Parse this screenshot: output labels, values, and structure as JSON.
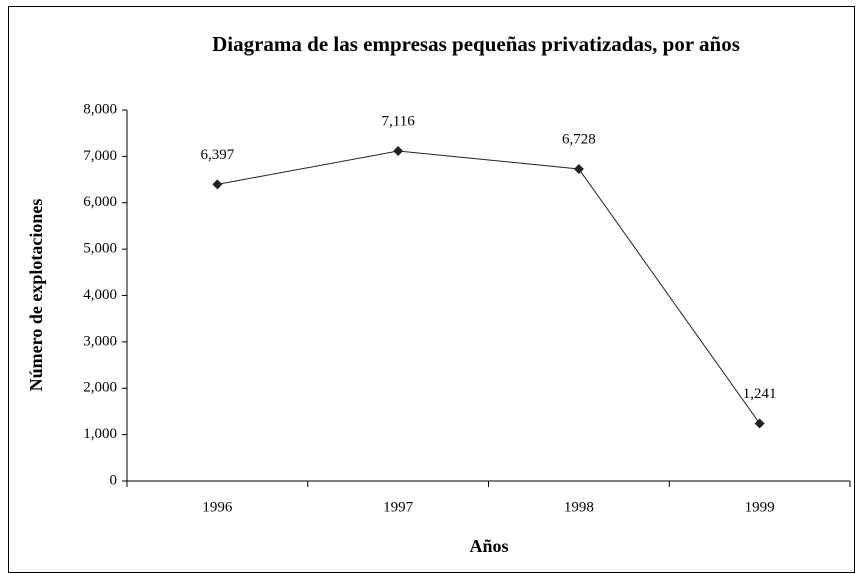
{
  "chart_data": {
    "type": "line",
    "title": "Diagrama de las empresas pequeñas privatizadas, por años",
    "x_label": "Años",
    "y_label": "Número de explotaciones",
    "categories": [
      "1996",
      "1997",
      "1998",
      "1999"
    ],
    "values": [
      6397,
      7116,
      6728,
      1241
    ],
    "value_labels": [
      "6,397",
      "7,116",
      "6,728",
      "1,241"
    ],
    "color": "#222222",
    "ylim": [
      0,
      8000
    ],
    "yticks": [
      0,
      {
        "value": 1000,
        "label": "1,000"
      },
      {
        "value": 2000,
        "label": "2,000"
      },
      {
        "value": 3000,
        "label": "3,000"
      },
      {
        "value": 4000,
        "label": "4,000"
      },
      {
        "value": 5000,
        "label": "5,000"
      },
      {
        "value": 6000,
        "label": "6,000"
      },
      {
        "value": 7000,
        "label": "7,000"
      },
      {
        "value": 8000,
        "label": "8,000"
      }
    ]
  }
}
